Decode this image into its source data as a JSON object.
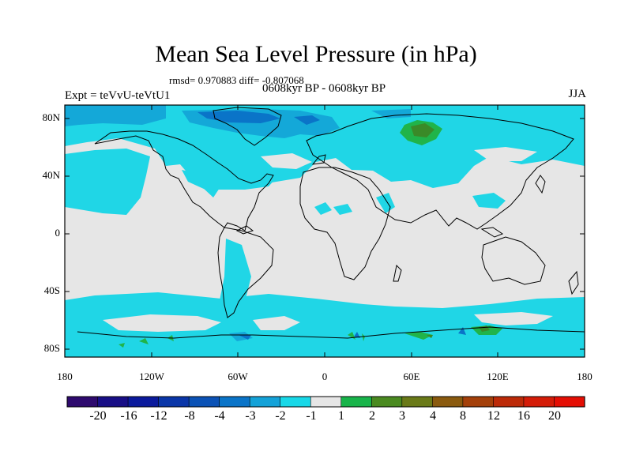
{
  "header": {
    "title": "Mean Sea Level Pressure (in hPa)",
    "stats": "rmsd= 0.970883 diff= -0.807068",
    "period": "0608kyr BP - 0608kyr BP",
    "experiment": "Expt = teVvU-teVtU1",
    "season": "JJA"
  },
  "axes": {
    "lat_labels": [
      "80N",
      "40N",
      "0",
      "40S",
      "80S"
    ],
    "lon_labels": [
      "180",
      "120W",
      "60W",
      "0",
      "60E",
      "120E",
      "180"
    ]
  },
  "colorbar": {
    "labels": [
      "-20",
      "-16",
      "-12",
      "-8",
      "-4",
      "-3",
      "-2",
      "-1",
      "1",
      "2",
      "3",
      "4",
      "8",
      "12",
      "16",
      "20"
    ],
    "colors": [
      "#2e0a6e",
      "#180e86",
      "#0b1a9c",
      "#0a36a8",
      "#0b52b6",
      "#0a74c8",
      "#14a2d8",
      "#18d8e8",
      "#e6e6e6",
      "#18b44a",
      "#4a8a20",
      "#6a7a18",
      "#8a5a0e",
      "#a4400a",
      "#bc2a08",
      "#d41c08",
      "#e40e04"
    ]
  },
  "palette": {
    "background": "#e6e6e6",
    "negative_light": "#20d6e6",
    "negative_mid": "#14a8d8",
    "negative_strong": "#0a74c8",
    "positive_light": "#20b44a",
    "positive_strong": "#3a8a28",
    "coast": "#000000"
  }
}
